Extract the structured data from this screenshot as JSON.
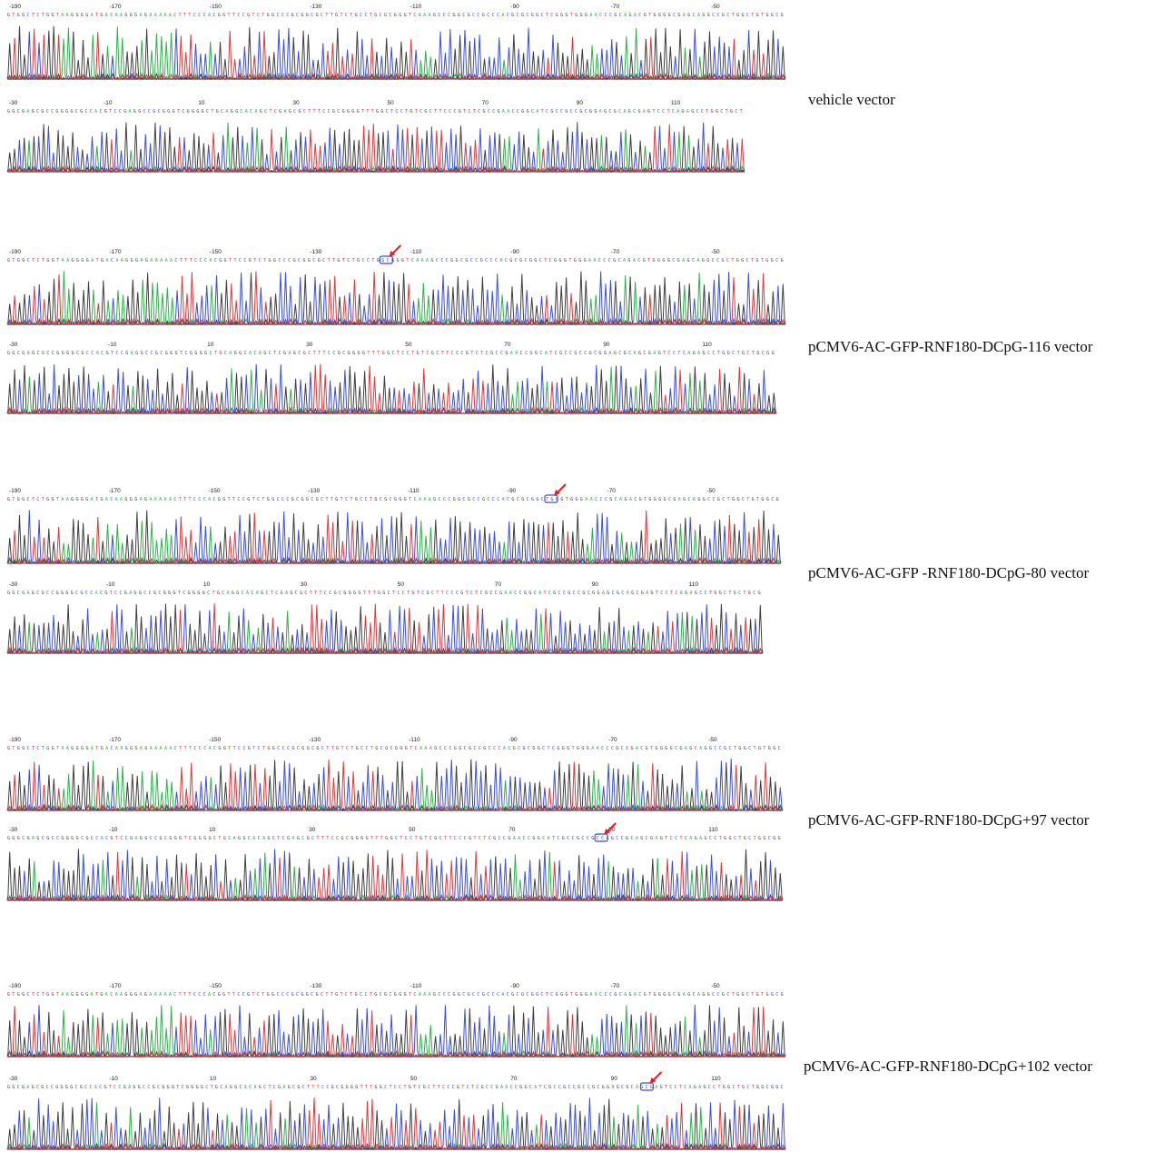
{
  "figure": {
    "base_colors": {
      "A": "#2db34a",
      "C": "#3b4fe0",
      "G": "#404040",
      "T": "#e0393c"
    },
    "marker_color": "#e41e26",
    "panels": [
      {
        "label": "vehicle vector",
        "row1": {
          "ticks": [
            "-190",
            "-170",
            "-150",
            "-130",
            "-110",
            "-90",
            "-70",
            "-50"
          ],
          "sequence": "GTGGCTCTGGTAAGGGGATGACAAGGGAGAAAAACTTTCCCACGGTTCCGTCTGGCCCGCGGCGCTTGTCTGCCTGCGCGGGTCAAAGCCCGGCGCCGCCCACGCGCGGCTCGGGTGGGAACCCGCAGACGTGGGGCGAGCAGGCCGCTGGCTGTGGCG"
        },
        "row2": {
          "ticks": [
            "-30",
            "-10",
            "10",
            "30",
            "50",
            "70",
            "90",
            "110"
          ],
          "sequence": "GGCGAGCGCCGGGGCGCCACGTCCGAGGCCGCGGGTCGGGGCTGCAGGCACAGCTCGAGCGCTTTCCGCGGGGTTTGGCTCCTGTCGCTTCCCGTCTCGCCGAACCGGCATCGCCGCCGCGGAGCGCAGCGAGTCCTCAGAGCCTGGCTGCT"
        }
      },
      {
        "label": "pCMV6-AC-GFP-RNF180-DCpG-116 vector",
        "row1": {
          "ticks": [
            "-190",
            "-170",
            "-150",
            "-130",
            "-110",
            "-90",
            "-70",
            "-50"
          ],
          "sequence": "GTGGCTCTGGTAAGGGGATGACAAGGGAGAAAAACTTTCCCACGGTTCCGTCTGGCCCGCGGCGCTTGTCTGCCTGGCGGGTCAAAGCCCGGCGCCGCCCACGCGCGGCTCGGGTGGGAACCCGCAGACGTGGGGCGAGCAGGCCGCTGGCTGTGGCG"
        },
        "row2": {
          "ticks": [
            "-30",
            "-10",
            "10",
            "30",
            "50",
            "70",
            "90",
            "110"
          ],
          "sequence": "GGCGAGCGCCGGGGCGCCACGTCCGAGGCCGCGGGTCGGGGCTGCAGGCACAGCTCGAGCGCTTTCCGCGGGGTTTGGCTCCTGTCGCTTCCCGTCTCGCCGAACCGGCATCGCCGCCGCGGAGCGCAGCGAGTCCTCAGAGCCTGGCTGCTGCGG"
        }
      },
      {
        "label": "pCMV6-AC-GFP -RNF180-DCpG-80 vector",
        "row1": {
          "ticks": [
            "-190",
            "-170",
            "-150",
            "-130",
            "-110",
            "-90",
            "-70",
            "-50"
          ],
          "sequence": "GTGGCTCTGGTAAGGGGATGACAAGGGAGAAAAACTTTCCCACGGTTCCGTCTGGCCCGCGGCGCTTGTCTGCCTGCGCGGGTCAAAGCCCGGCGCCGCCCACGCGCGGCTGGGTGGGAACCCGCAGACGTGGGGCGAGCAGGCCGCTGGCTGTGGCG"
        },
        "row2": {
          "ticks": [
            "-30",
            "-10",
            "10",
            "30",
            "50",
            "70",
            "90",
            "110"
          ],
          "sequence": "GGCGAGCGCCGGGGCGCCACGTCCGAGGCCGCGGGTCGGGGCTGCAGGCACAGCTCGAGCGCTTTCCGCGGGGTTTGGCTCCTGTCGCTTCCCGTCTCGCCGAACCGGCATCGCCGCCGCGGAGCGCAGCGAGTCCTCAGAGCCTGGCTGCTGCG"
        }
      },
      {
        "label": "pCMV6-AC-GFP-RNF180-DCpG+97 vector",
        "row1": {
          "ticks": [
            "-190",
            "-170",
            "-150",
            "-130",
            "-110",
            "-90",
            "-70",
            "-50"
          ],
          "sequence": "GTGGCTCTGGTAAGGGGATGACAAGGGAGAAAAACTTTCCCACGGTTCCGTCTGGCCCGCGGCGCTTGTCTGCCTGCGCGGGTCAAAGCCCGGCGCCGCCCACGCGCGGCTCGGGTGGGAACCCGCAGACGTGGGGCGAGCAGGCCGCTGGCTGTGGC"
        },
        "row2": {
          "ticks": [
            "-30",
            "-10",
            "10",
            "30",
            "50",
            "70",
            "90",
            "110"
          ],
          "sequence": "GGGCGAGCGCCGGGGCGCCACGTCCGAGGCCGCGGGTCGGGGCTGCAGGCACAGCTCGAGCGCTTTCCGCGGGGTTTGGCTCCTGTCGCTTCCCGTCTCGCCGAACCGGCATCGCCGCCGCCAGCCGCAGCGAGTCCTCAGAGCCTGGCTGCTGGCGG"
        }
      },
      {
        "label": "pCMV6-AC-GFP-RNF180-DCpG+102 vector",
        "row1": {
          "ticks": [
            "-190",
            "-170",
            "-150",
            "-130",
            "-110",
            "-90",
            "-70",
            "-50"
          ],
          "sequence": "GTGGCTCTGGTAAGGGGATGACAAGGGAGAAAAACTTTCCCACGGTTCCGTCTGGCCCGCGGCGCTTGTCTGCCTGCGCGGGTCAAAGCCCGGCGCCGCCCACGCGCGGCTCGGGTGGGAACCCGCAGACGTGGGGCGAGCAGGCCGCTGGCTGTGGCG"
        },
        "row2": {
          "ticks": [
            "-30",
            "-10",
            "10",
            "30",
            "50",
            "70",
            "90",
            "110"
          ],
          "sequence": "GGCGAGCGCCGGGGCGCCACGTCCGAGGCCGCGGGTCGGGGCTGCAGGCACAGCTCGAGCGCTTTCCGCGGGGTTTGGCTCCTGTCGCTTCCCGTCTCGCCGAACCGGCATCGCCGCCGCCGCGGAGCGCAGCGAGTCCTCAGAGCCTGGCTGCTGGCGGC"
        }
      }
    ]
  }
}
